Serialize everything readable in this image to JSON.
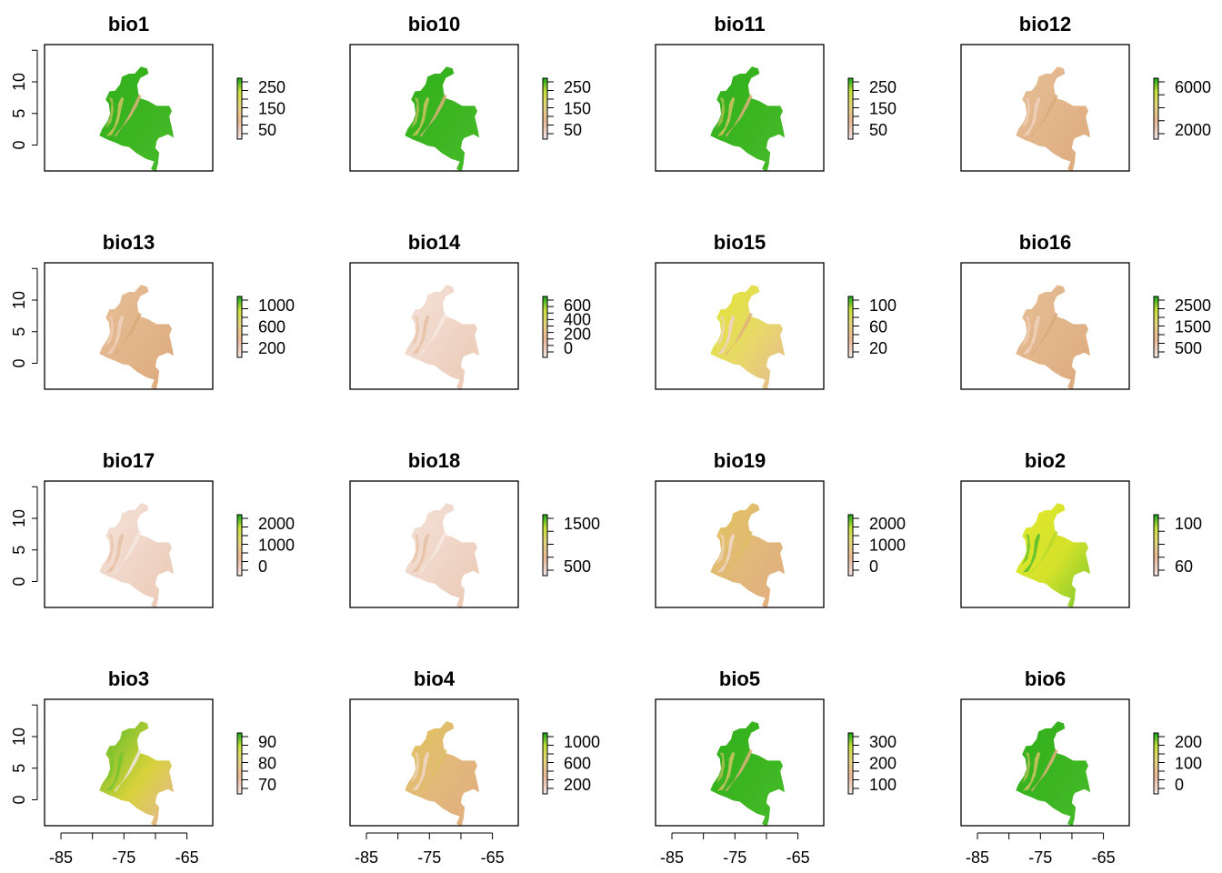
{
  "chart_data": [
    {
      "type": "heatmap",
      "title": "bio1",
      "legend": {
        "labels": [
          "50",
          "150",
          "250"
        ],
        "palette": "terrain"
      },
      "map_tone": "green"
    },
    {
      "type": "heatmap",
      "title": "bio10",
      "legend": {
        "labels": [
          "50",
          "150",
          "250"
        ],
        "palette": "terrain"
      },
      "map_tone": "green"
    },
    {
      "type": "heatmap",
      "title": "bio11",
      "legend": {
        "labels": [
          "50",
          "150",
          "250"
        ],
        "palette": "terrain"
      },
      "map_tone": "green"
    },
    {
      "type": "heatmap",
      "title": "bio12",
      "legend": {
        "labels": [
          "2000",
          "6000"
        ],
        "palette": "terrain"
      },
      "map_tone": "tan"
    },
    {
      "type": "heatmap",
      "title": "bio13",
      "legend": {
        "labels": [
          "200",
          "600",
          "1000"
        ],
        "palette": "terrain"
      },
      "map_tone": "tan"
    },
    {
      "type": "heatmap",
      "title": "bio14",
      "legend": {
        "labels": [
          "0",
          "200",
          "400",
          "600"
        ],
        "palette": "terrain"
      },
      "map_tone": "pale"
    },
    {
      "type": "heatmap",
      "title": "bio15",
      "legend": {
        "labels": [
          "20",
          "60",
          "100"
        ],
        "palette": "terrain"
      },
      "map_tone": "yellow"
    },
    {
      "type": "heatmap",
      "title": "bio16",
      "legend": {
        "labels": [
          "500",
          "1500",
          "2500"
        ],
        "palette": "terrain"
      },
      "map_tone": "tan"
    },
    {
      "type": "heatmap",
      "title": "bio17",
      "legend": {
        "labels": [
          "0",
          "1000",
          "2000"
        ],
        "palette": "terrain"
      },
      "map_tone": "pale"
    },
    {
      "type": "heatmap",
      "title": "bio18",
      "legend": {
        "labels": [
          "500",
          "1500"
        ],
        "palette": "terrain"
      },
      "map_tone": "pale"
    },
    {
      "type": "heatmap",
      "title": "bio19",
      "legend": {
        "labels": [
          "0",
          "1000",
          "2000"
        ],
        "palette": "terrain"
      },
      "map_tone": "tanyellow"
    },
    {
      "type": "heatmap",
      "title": "bio2",
      "legend": {
        "labels": [
          "60",
          "100"
        ],
        "palette": "terrain"
      },
      "map_tone": "yellowgreen"
    },
    {
      "type": "heatmap",
      "title": "bio3",
      "legend": {
        "labels": [
          "70",
          "80",
          "90"
        ],
        "palette": "terrain"
      },
      "map_tone": "mixed"
    },
    {
      "type": "heatmap",
      "title": "bio4",
      "legend": {
        "labels": [
          "200",
          "600",
          "1000"
        ],
        "palette": "terrain"
      },
      "map_tone": "tanyellow"
    },
    {
      "type": "heatmap",
      "title": "bio5",
      "legend": {
        "labels": [
          "100",
          "200",
          "300"
        ],
        "palette": "terrain"
      },
      "map_tone": "green"
    },
    {
      "type": "heatmap",
      "title": "bio6",
      "legend": {
        "labels": [
          "0",
          "100",
          "200"
        ],
        "palette": "terrain"
      },
      "map_tone": "green"
    }
  ],
  "axes": {
    "y_ticks": [
      "0",
      "5",
      "10"
    ],
    "x_tick_labels": [
      "-85",
      "-75",
      "-65"
    ]
  },
  "colors": {
    "green": "#3cb521",
    "yellow": "#dfe630",
    "tan": "#e4b385",
    "pale": "#f0d7c9",
    "white": "#f2f2f2"
  }
}
